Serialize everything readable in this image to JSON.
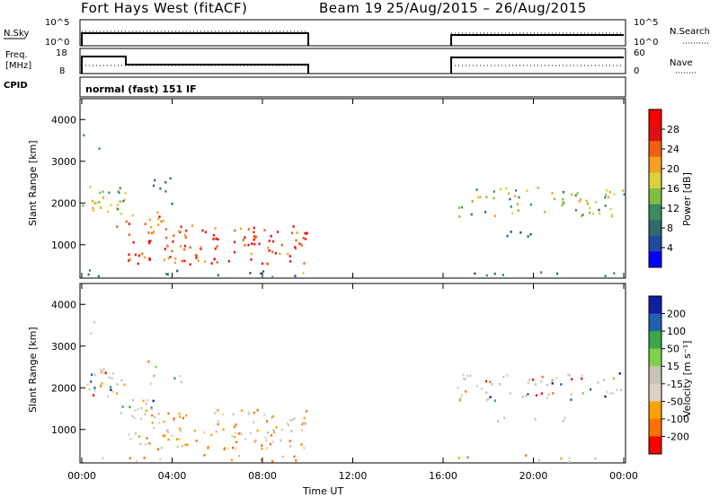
{
  "header": {
    "title": "Fort Hays West (fitACF)",
    "beam": "Beam 19",
    "date_range": "25/Aug/2015 – 26/Aug/2015"
  },
  "top_panels": {
    "nsky_label": "N.Sky",
    "nsky_ticks": [
      "10^5",
      "10^0"
    ],
    "nsearch_label": "N.Search",
    "nsearch_ticks": [
      "10^5",
      "10^0"
    ],
    "freq_label_1": "Freq.",
    "freq_label_2": "[MHz]",
    "freq_ticks": [
      "18",
      "8"
    ],
    "nave_label": "Nave",
    "nave_ticks": [
      "60",
      "0"
    ],
    "cpid_label": "CPID",
    "cpid_text": "normal (fast) 151 IF"
  },
  "colors": {
    "power": [
      "#0000ff",
      "#1f4aa0",
      "#2f6b6b",
      "#3b8b60",
      "#7fbf3f",
      "#d8d23a",
      "#f5a020",
      "#f06010",
      "#e01010",
      "#ff0000"
    ],
    "velocity": [
      "#ff0000",
      "#ff7000",
      "#ffa000",
      "#d9d3c4",
      "#c7c3b8",
      "#7ed24a",
      "#3ca84a",
      "#2060b0",
      "#1020a0"
    ],
    "ground_scatter": "#c7c3b8"
  },
  "chart_data": [
    {
      "type": "heatmap",
      "name": "power",
      "ylabel": "Slant Range [km]",
      "y_ticks": [
        "4000",
        "3000",
        "2000",
        "1000"
      ],
      "ylim": [
        200,
        4500
      ],
      "colorbar_label": "Power [dB]",
      "colorbar_ticks": [
        "28",
        "24",
        "20",
        "16",
        "12",
        "8",
        "4"
      ],
      "data_gap_hours": [
        10.0,
        16.5
      ]
    },
    {
      "type": "heatmap",
      "name": "velocity",
      "ylabel": "Slant Range [km]",
      "y_ticks": [
        "4000",
        "3000",
        "2000",
        "1000"
      ],
      "ylim": [
        200,
        4500
      ],
      "colorbar_label": "Velocity [m s⁻¹]",
      "colorbar_ticks": [
        "200",
        "100",
        "50",
        "15",
        "-15",
        "-50",
        "-100",
        "-200"
      ],
      "data_gap_hours": [
        10.0,
        16.5
      ]
    }
  ],
  "x_axis": {
    "label": "Time UT",
    "ticks": [
      "00:00",
      "04:00",
      "08:00",
      "12:00",
      "16:00",
      "20:00",
      "00:00"
    ],
    "range_hours": [
      0,
      24
    ]
  }
}
